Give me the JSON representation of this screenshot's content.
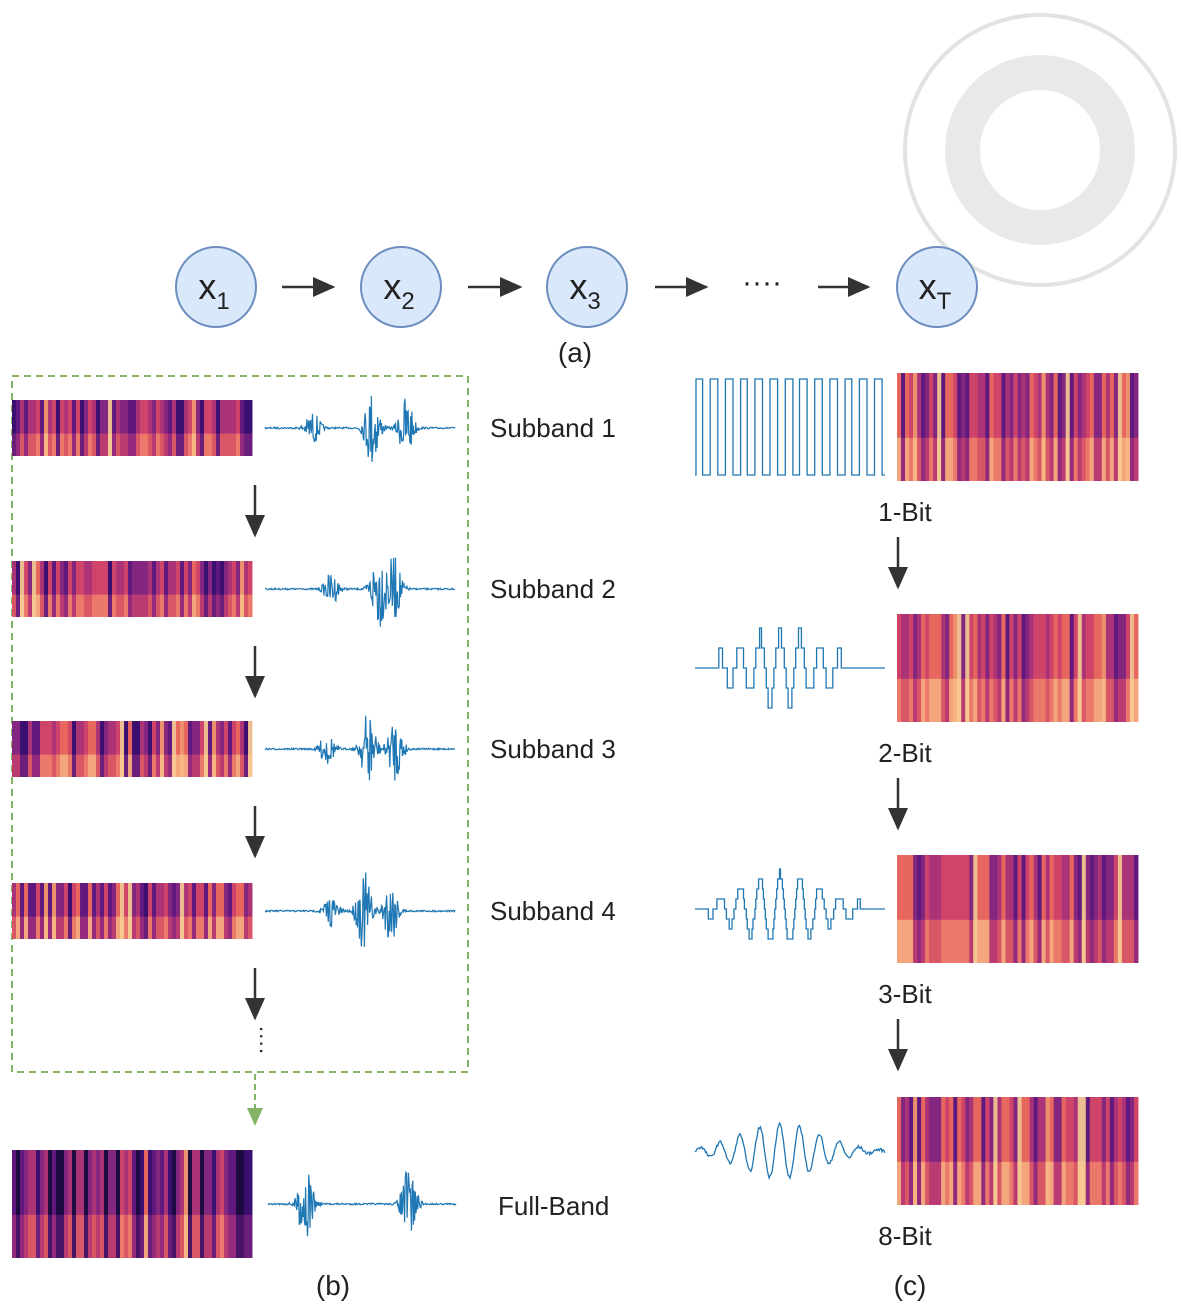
{
  "diagram": {
    "nodes": [
      {
        "base": "x",
        "sub": "1"
      },
      {
        "base": "x",
        "sub": "2"
      },
      {
        "base": "x",
        "sub": "3"
      },
      {
        "base": "x",
        "sub": "T"
      }
    ],
    "ellipsis": "····",
    "caption": "(a)"
  },
  "panel_b": {
    "rows": [
      "Subband 1",
      "Subband 2",
      "Subband 3",
      "Subband 4"
    ],
    "full_band": "Full-Band",
    "caption": "(b)"
  },
  "panel_c": {
    "rows": [
      "1-Bit",
      "2-Bit",
      "3-Bit",
      "8-Bit"
    ],
    "caption": "(c)"
  }
}
